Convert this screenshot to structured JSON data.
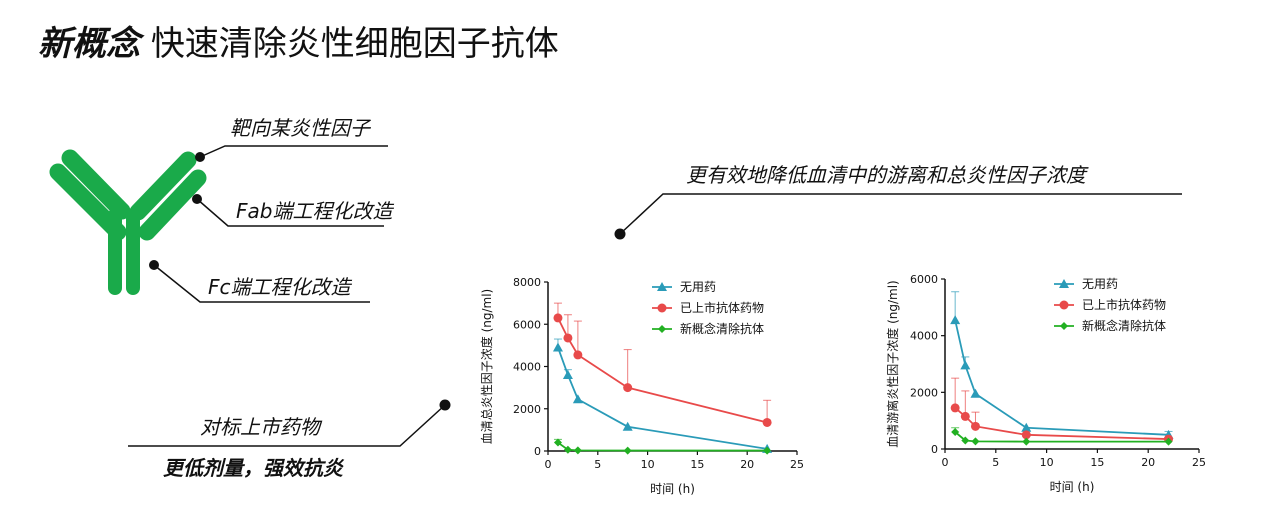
{
  "title": {
    "bold": "新概念",
    "rest": "快速清除炎性细胞因子抗体"
  },
  "antibody": {
    "color": "#1aaa4a",
    "callouts": {
      "target": "靶向某炎性因子",
      "fab": "Fab端工程化改造",
      "fc": "Fc端工程化改造"
    }
  },
  "chart_callout": "更有效地降低血清中的游离和总炎性因子浓度",
  "benchmark": {
    "line1": "对标上市药物",
    "line2": "更低剂量，强效抗炎"
  },
  "chart_data": [
    {
      "type": "line",
      "xlabel": "时间 (h)",
      "ylabel": "血清总炎性因子浓度 (ng/ml)",
      "xlim": [
        0,
        25
      ],
      "ylim": [
        0,
        8000
      ],
      "xticks": [
        "0",
        "5",
        "10",
        "15",
        "20",
        "25"
      ],
      "yticks": [
        "0",
        "2000",
        "4000",
        "6000",
        "8000"
      ],
      "legend_position": "top-right",
      "series": [
        {
          "name": "无用药",
          "color": "#2a9bb8",
          "marker": "triangle",
          "x": [
            1,
            2,
            3,
            8,
            22
          ],
          "y": [
            4900,
            3600,
            2450,
            1150,
            100
          ],
          "err": [
            400,
            250,
            0,
            0,
            0
          ]
        },
        {
          "name": "已上市抗体药物",
          "color": "#e84a4a",
          "marker": "circle",
          "x": [
            1,
            2,
            3,
            8,
            22
          ],
          "y": [
            6300,
            5350,
            4550,
            3000,
            1350
          ],
          "err": [
            700,
            1100,
            1600,
            1800,
            1050
          ]
        },
        {
          "name": "新概念清除抗体",
          "color": "#22b022",
          "marker": "diamond",
          "x": [
            1,
            2,
            3,
            8,
            22
          ],
          "y": [
            400,
            60,
            30,
            20,
            20
          ],
          "err": [
            150,
            0,
            0,
            0,
            0
          ]
        }
      ]
    },
    {
      "type": "line",
      "xlabel": "时间 (h)",
      "ylabel": "血清游离炎性因子浓度 (ng/ml)",
      "xlim": [
        0,
        25
      ],
      "ylim": [
        0,
        6000
      ],
      "xticks": [
        "0",
        "5",
        "10",
        "15",
        "20",
        "25"
      ],
      "yticks": [
        "0",
        "2000",
        "4000",
        "6000"
      ],
      "legend_position": "top-right",
      "series": [
        {
          "name": "无用药",
          "color": "#2a9bb8",
          "marker": "triangle",
          "x": [
            1,
            2,
            3,
            8,
            22
          ],
          "y": [
            4550,
            2950,
            1950,
            750,
            500
          ],
          "err": [
            1000,
            300,
            0,
            0,
            120
          ]
        },
        {
          "name": "已上市抗体药物",
          "color": "#e84a4a",
          "marker": "circle",
          "x": [
            1,
            2,
            3,
            8,
            22
          ],
          "y": [
            1450,
            1150,
            800,
            500,
            350
          ],
          "err": [
            1050,
            900,
            500,
            0,
            0
          ]
        },
        {
          "name": "新概念清除抗体",
          "color": "#22b022",
          "marker": "diamond",
          "x": [
            1,
            2,
            3,
            8,
            22
          ],
          "y": [
            600,
            300,
            270,
            260,
            260
          ],
          "err": [
            150,
            0,
            0,
            0,
            0
          ]
        }
      ]
    }
  ]
}
